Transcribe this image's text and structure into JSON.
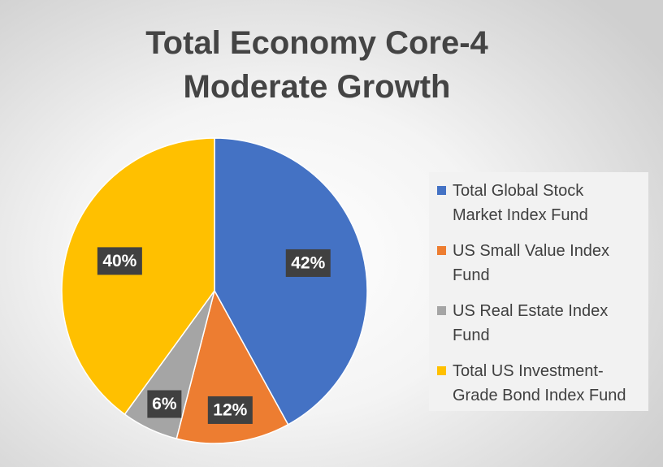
{
  "chart_data": {
    "type": "pie",
    "title_lines": [
      "Total Economy Core-4",
      "Moderate Growth"
    ],
    "slices": [
      {
        "label": "Total Global Stock Market Index Fund",
        "legend_lines": [
          "Total Global Stock",
          "Market Index Fund"
        ],
        "value": 42,
        "display": "42%",
        "color": "#4472C4"
      },
      {
        "label": "US Small Value Index Fund",
        "legend_lines": [
          "US Small Value Index",
          "Fund"
        ],
        "value": 12,
        "display": "12%",
        "color": "#ED7D31"
      },
      {
        "label": "US Real Estate Index Fund",
        "legend_lines": [
          "US Real Estate Index",
          "Fund"
        ],
        "value": 6,
        "display": "6%",
        "color": "#A5A5A5"
      },
      {
        "label": "Total US Investment-Grade Bond Index Fund",
        "legend_lines": [
          "Total US Investment-",
          "Grade Bond Index Fund"
        ],
        "value": 40,
        "display": "40%",
        "color": "#FFC000"
      }
    ],
    "start_angle_deg": 0,
    "direction": "clockwise",
    "legend_position": "right"
  }
}
